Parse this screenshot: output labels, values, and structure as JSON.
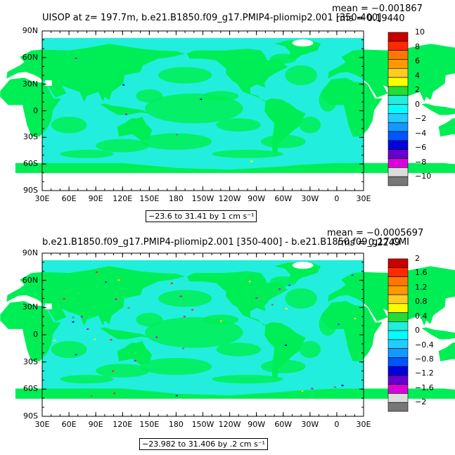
{
  "panels": [
    {
      "title": "UISOP at z= 197.7m, b.e21.B1850.f09_g17.PMIP4-pliomip2.001 [350-400]",
      "mean": "mean = −0.001867",
      "rms": "rms = 0.19440",
      "range": "−23.6 to 31.41 by 1 cm s⁻¹",
      "colorbar_labels": [
        "10",
        "8",
        "6",
        "4",
        "2",
        "0",
        "−2",
        "−4",
        "−6",
        "−8",
        "−10"
      ]
    },
    {
      "title": "b.e21.B1850.f09_g17.PMIP4-pliomip2.001 [350-400] - b.e21.B1850.f09_g17.CMI",
      "mean": "mean = −0.0005697",
      "rms": "rms = 0.2249",
      "range": "−23.982 to 31.406 by .2 cm s⁻¹",
      "colorbar_labels": [
        "2",
        "1.6",
        "1.2",
        "0.8",
        "0.4",
        "0",
        "−0.4",
        "−0.8",
        "−1.2",
        "−1.6",
        "−2"
      ]
    }
  ],
  "lat_labels": [
    "90N",
    "60N",
    "30N",
    "0",
    "30S",
    "60S",
    "90S"
  ],
  "lon_labels": [
    "30E",
    "60E",
    "90E",
    "120E",
    "150E",
    "180",
    "150W",
    "120W",
    "90W",
    "60W",
    "30W",
    "0",
    "30E"
  ],
  "colors": {
    "land": "#00ee55",
    "ocean": "#22eedd",
    "colorbar": [
      "#c80000",
      "#ff2a00",
      "#ff7700",
      "#ff9900",
      "#ffcc22",
      "#ffff00",
      "#22dd33",
      "#22eedd",
      "#00ffff",
      "#22ccff",
      "#1199ff",
      "#0055ff",
      "#0000dd",
      "#6600cc",
      "#dd00dd",
      "#dcdcdc",
      "#777777"
    ]
  }
}
